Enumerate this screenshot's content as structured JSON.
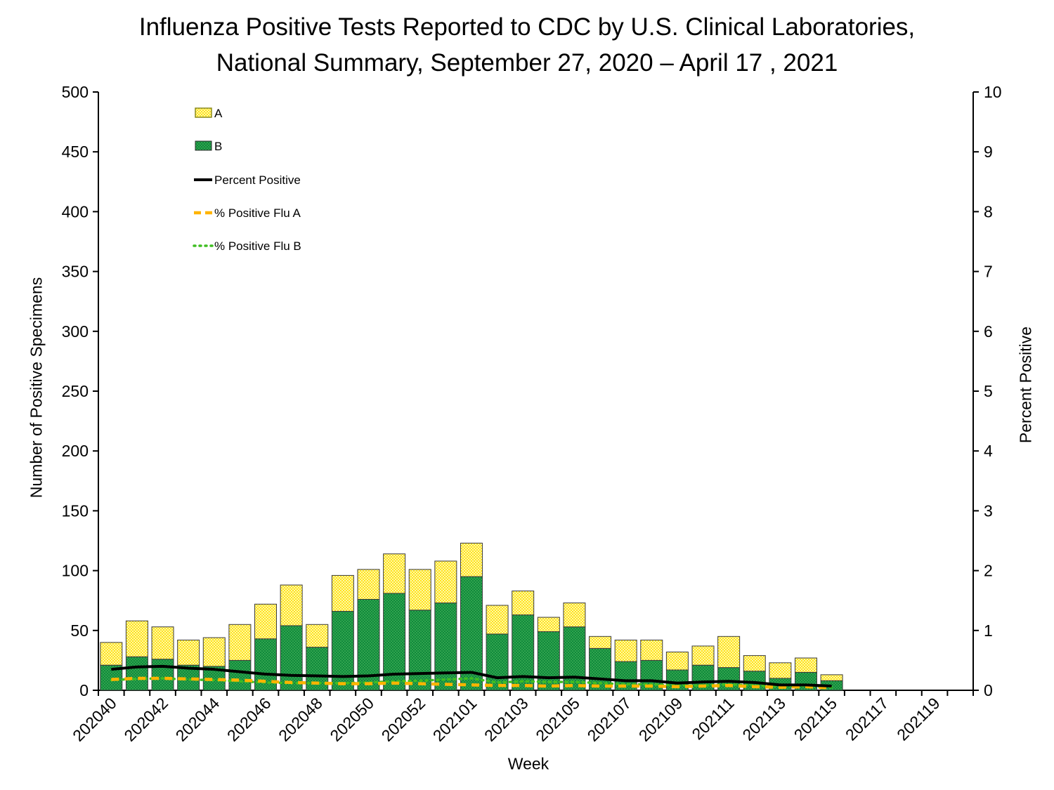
{
  "title": {
    "line1": "Influenza Positive Tests Reported to CDC by U.S. Clinical Laboratories,",
    "line2": "National Summary, September 27, 2020 – April 17 , 2021"
  },
  "axes": {
    "left": {
      "label": "Number of Positive Specimens",
      "tick_labels": [
        "0",
        "50",
        "100",
        "150",
        "200",
        "250",
        "300",
        "350",
        "400",
        "450",
        "500"
      ]
    },
    "right": {
      "label": "Percent Positive",
      "tick_labels": [
        "0",
        "1",
        "2",
        "3",
        "4",
        "5",
        "6",
        "7",
        "8",
        "9",
        "10"
      ]
    },
    "x": {
      "label": "Week",
      "tick_labels": [
        "202040",
        "202042",
        "202044",
        "202046",
        "202048",
        "202050",
        "202052",
        "202101",
        "202103",
        "202105",
        "202107",
        "202109",
        "202111",
        "202113",
        "202115",
        "202117",
        "202119"
      ]
    }
  },
  "legend": [
    {
      "label": "A",
      "swatch": "bar-a"
    },
    {
      "label": "B",
      "swatch": "bar-b"
    },
    {
      "label": "Percent Positive",
      "swatch": "line-solid"
    },
    {
      "label": "% Positive Flu A",
      "swatch": "line-dashed"
    },
    {
      "label": "% Positive Flu B",
      "swatch": "line-dotted"
    }
  ],
  "colors": {
    "flu_a_fill": "#FFE21E",
    "flu_a_fill_light": "#FFF8A6",
    "flu_b_fill": "#108A3C",
    "flu_b_fill_dot": "#57C063",
    "percent_positive_line": "#000000",
    "flu_a_line": "#FFB400",
    "flu_b_line": "#3FBE21",
    "bar_outline": "#3C3C3C",
    "axis": "#000000"
  },
  "chart_data": {
    "type": "bar",
    "subtype": "stacked-bars-with-lines",
    "title": "Influenza Positive Tests Reported to CDC by U.S. Clinical Laboratories, National Summary, September 27, 2020 – April 17 , 2021",
    "xlabel": "Week",
    "ylabel_left": "Number of Positive Specimens",
    "ylabel_right": "Percent Positive",
    "ylim_left": [
      0,
      500
    ],
    "ylim_right": [
      0,
      10
    ],
    "grid": false,
    "legend_position": "top-left-inside",
    "x_slots": [
      "202040",
      "202041",
      "202042",
      "202043",
      "202044",
      "202045",
      "202046",
      "202047",
      "202048",
      "202049",
      "202050",
      "202051",
      "202052",
      "202053",
      "202101",
      "202102",
      "202103",
      "202104",
      "202105",
      "202106",
      "202107",
      "202108",
      "202109",
      "202110",
      "202111",
      "202112",
      "202113",
      "202114",
      "202115",
      "202116",
      "202117",
      "202118",
      "202119",
      "202120"
    ],
    "categories": [
      "202040",
      "202041",
      "202042",
      "202043",
      "202044",
      "202045",
      "202046",
      "202047",
      "202048",
      "202049",
      "202050",
      "202051",
      "202052",
      "202053",
      "202101",
      "202102",
      "202103",
      "202104",
      "202105",
      "202106",
      "202107",
      "202108",
      "202109",
      "202110",
      "202111",
      "202112",
      "202113",
      "202114",
      "202115"
    ],
    "series": [
      {
        "name": "A",
        "type": "bar",
        "axis": "left",
        "values": [
          19,
          30,
          27,
          21,
          24,
          30,
          29,
          34,
          19,
          30,
          25,
          33,
          34,
          35,
          28,
          24,
          20,
          12,
          20,
          10,
          18,
          17,
          15,
          16,
          26,
          13,
          13,
          12,
          5
        ]
      },
      {
        "name": "B",
        "type": "bar",
        "axis": "left",
        "values": [
          21,
          28,
          26,
          21,
          20,
          25,
          43,
          54,
          36,
          66,
          76,
          81,
          67,
          73,
          95,
          47,
          63,
          49,
          53,
          35,
          24,
          25,
          17,
          21,
          19,
          16,
          10,
          15,
          8
        ]
      },
      {
        "name": "Percent Positive",
        "type": "line",
        "axis": "right",
        "values": [
          0.35,
          0.39,
          0.4,
          0.37,
          0.35,
          0.31,
          0.27,
          0.25,
          0.24,
          0.23,
          0.24,
          0.27,
          0.28,
          0.29,
          0.3,
          0.21,
          0.23,
          0.21,
          0.22,
          0.19,
          0.16,
          0.16,
          0.12,
          0.14,
          0.15,
          0.13,
          0.09,
          0.09,
          0.07
        ]
      },
      {
        "name": "% Positive Flu A",
        "type": "line",
        "axis": "right",
        "values": [
          0.18,
          0.2,
          0.2,
          0.19,
          0.18,
          0.17,
          0.15,
          0.13,
          0.12,
          0.11,
          0.11,
          0.12,
          0.11,
          0.1,
          0.09,
          0.08,
          0.08,
          0.07,
          0.08,
          0.07,
          0.07,
          0.07,
          0.06,
          0.07,
          0.08,
          0.06,
          0.05,
          0.06,
          0.04
        ]
      },
      {
        "name": "% Positive Flu B",
        "type": "line",
        "axis": "right",
        "values": [
          0.17,
          0.19,
          0.2,
          0.18,
          0.17,
          0.15,
          0.13,
          0.12,
          0.12,
          0.12,
          0.13,
          0.15,
          0.16,
          0.18,
          0.2,
          0.13,
          0.15,
          0.14,
          0.14,
          0.12,
          0.1,
          0.1,
          0.08,
          0.08,
          0.1,
          0.08,
          0.06,
          0.08,
          0.05
        ]
      }
    ]
  }
}
